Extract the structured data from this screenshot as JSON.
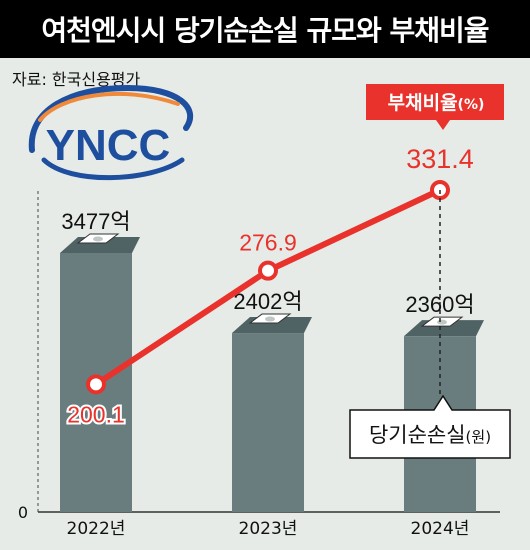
{
  "title": "여천엔시시 당기순손실 규모와 부채비율",
  "source": "자료: 한국신용평가",
  "logo_text": "YNCC",
  "colors": {
    "bar": "#697d7f",
    "line": "#e8322b",
    "background": "#e7ebe8",
    "title_bg": "#000000",
    "logo_blue": "#1d4f9e",
    "logo_orange": "#f08a3a"
  },
  "chart_data": {
    "type": "bar",
    "categories": [
      "2022년",
      "2023년",
      "2024년"
    ],
    "series": [
      {
        "name": "당기순손실(원)",
        "type": "bar",
        "values": [
          3477,
          2402,
          2360
        ],
        "value_labels": [
          "3477억",
          "2402억",
          "2360억"
        ]
      },
      {
        "name": "부채비율(%)",
        "type": "line",
        "values": [
          200.1,
          276.9,
          331.4
        ],
        "value_labels": [
          "200.1",
          "276.9",
          "331.4"
        ]
      }
    ],
    "y_axis_zero_label": "0",
    "legend": {
      "line_label": "부채비율",
      "line_unit": "(%)",
      "bar_label": "당기순손실",
      "bar_unit": "(원)"
    }
  }
}
